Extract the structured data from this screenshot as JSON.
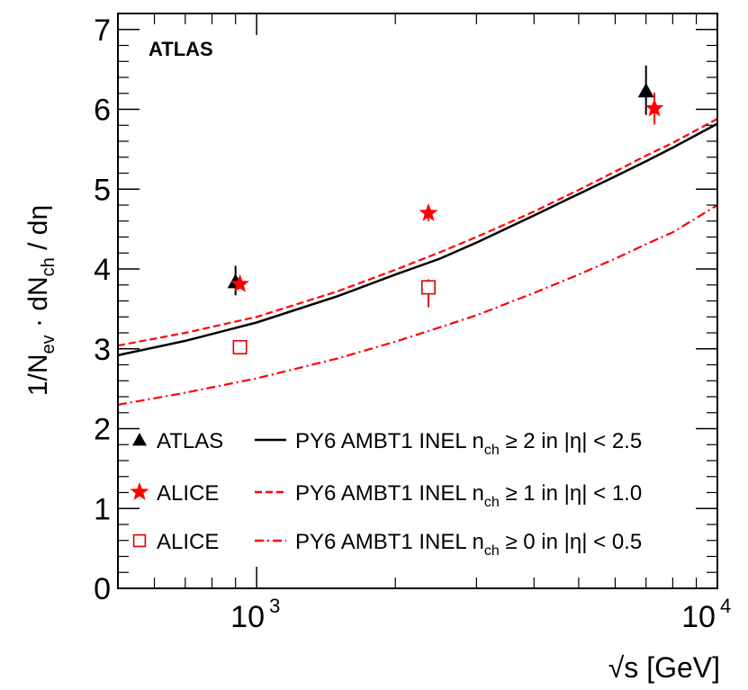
{
  "chart_data": {
    "type": "scatter",
    "title": "",
    "watermark": "ATLAS",
    "xlabel": "√s [GeV]",
    "ylabel": "1/N_ev · dN_ch / dη",
    "xscale": "log",
    "xlim": [
      500,
      10000
    ],
    "ylim": [
      0,
      7.2
    ],
    "x_tick_labels": [
      {
        "value": 1000,
        "base": "10",
        "exp": "3"
      },
      {
        "value": 10000,
        "base": "10",
        "exp": "4"
      }
    ],
    "y_tick_labels": [
      "0",
      "1",
      "2",
      "3",
      "4",
      "5",
      "6",
      "7"
    ],
    "y_ticks": [
      0,
      1,
      2,
      3,
      4,
      5,
      6,
      7
    ],
    "grid": false,
    "legend_position": "bottom-right",
    "points": [
      {
        "name": "ATLAS",
        "marker": "triangle",
        "color": "#000000",
        "data": [
          {
            "x": 900,
            "y": 3.84,
            "err_lo": 0.17,
            "err_hi": 0.2
          },
          {
            "x": 7000,
            "y": 6.23,
            "err_lo": 0.3,
            "err_hi": 0.32
          }
        ]
      },
      {
        "name": "ALICE",
        "marker": "star",
        "color": "#ff0000",
        "data": [
          {
            "x": 920,
            "y": 3.81,
            "err_lo": 0.06,
            "err_hi": 0.06
          },
          {
            "x": 2360,
            "y": 4.7,
            "err_lo": 0.1,
            "err_hi": 0.1
          },
          {
            "x": 7300,
            "y": 6.01,
            "err_lo": 0.2,
            "err_hi": 0.2
          }
        ]
      },
      {
        "name": "ALICE",
        "marker": "open-square",
        "color": "#dd0000",
        "data": [
          {
            "x": 920,
            "y": 3.02,
            "err_lo": 0.02,
            "err_hi": 0.02
          },
          {
            "x": 2360,
            "y": 3.77,
            "err_lo": 0.25,
            "err_hi": 0.1
          }
        ]
      }
    ],
    "curves": [
      {
        "name": "PY6 AMBT1 INEL n_ch ≥ 2 in |η| < 2.5",
        "label_prefix": "PY6 AMBT1 INEL n",
        "label_sub": "ch",
        "label_suffix": " ≥ 2 in |η| < 2.5",
        "style": "solid",
        "color": "#000000",
        "x": [
          500,
          700,
          1000,
          1500,
          2000,
          2500,
          3000,
          4000,
          5000,
          6000,
          7000,
          8000,
          10000
        ],
        "y": [
          2.92,
          3.1,
          3.33,
          3.66,
          3.93,
          4.13,
          4.33,
          4.67,
          4.94,
          5.16,
          5.35,
          5.52,
          5.82
        ]
      },
      {
        "name": "PY6 AMBT1 INEL n_ch ≥ 1 in |η| < 1.0",
        "label_prefix": "PY6 AMBT1 INEL n",
        "label_sub": "ch",
        "label_suffix": " ≥ 1 in |η| < 1.0",
        "style": "dashed",
        "color": "#ff0000",
        "x": [
          500,
          700,
          1000,
          1500,
          2000,
          2500,
          3000,
          4000,
          5000,
          6000,
          7000,
          8000,
          10000
        ],
        "y": [
          3.04,
          3.2,
          3.4,
          3.72,
          3.99,
          4.21,
          4.4,
          4.72,
          4.99,
          5.22,
          5.42,
          5.58,
          5.88
        ]
      },
      {
        "name": "PY6 AMBT1 INEL n_ch ≥ 0 in |η| < 0.5",
        "label_prefix": "PY6 AMBT1 INEL n",
        "label_sub": "ch",
        "label_suffix": " ≥ 0 in |η| < 0.5",
        "style": "dashdot",
        "color": "#ff0000",
        "x": [
          500,
          700,
          1000,
          1500,
          2000,
          2500,
          3000,
          4000,
          5000,
          6000,
          7000,
          8000,
          10000
        ],
        "y": [
          2.3,
          2.45,
          2.63,
          2.88,
          3.09,
          3.27,
          3.42,
          3.7,
          3.93,
          4.13,
          4.31,
          4.46,
          4.8
        ]
      }
    ]
  }
}
